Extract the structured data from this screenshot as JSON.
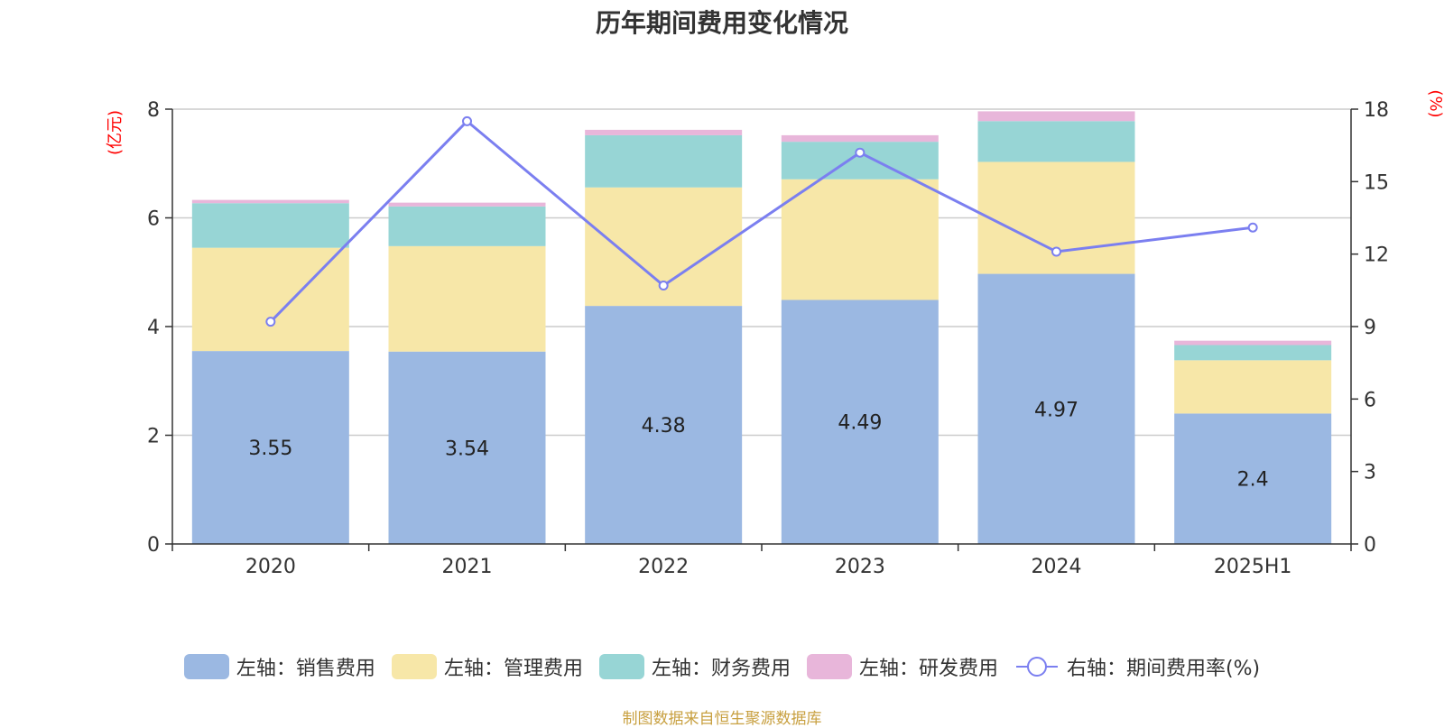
{
  "chart_data": {
    "type": "bar",
    "title": "历年期间费用变化情况",
    "categories": [
      "2020",
      "2021",
      "2022",
      "2023",
      "2024",
      "2025H1"
    ],
    "y_left_label": "(亿元)",
    "y_right_label": "(%)",
    "y_left_range": [
      0,
      8
    ],
    "y_left_ticks": [
      "0",
      "2",
      "4",
      "6",
      "8"
    ],
    "y_right_range": [
      0,
      18
    ],
    "y_right_ticks": [
      "0",
      "3",
      "6",
      "9",
      "12",
      "15",
      "18"
    ],
    "grid": true,
    "series": [
      {
        "name": "左轴：销售费用",
        "type": "bar",
        "stack": true,
        "axis": "left",
        "color": "#9bb8e2",
        "values": [
          3.55,
          3.54,
          4.38,
          4.49,
          4.97,
          2.4
        ],
        "labels": [
          "3.55",
          "3.54",
          "4.38",
          "4.49",
          "4.97",
          "2.4"
        ]
      },
      {
        "name": "左轴：管理费用",
        "type": "bar",
        "stack": true,
        "axis": "left",
        "color": "#f7e7a8",
        "values": [
          1.9,
          1.94,
          2.18,
          2.22,
          2.06,
          0.98
        ]
      },
      {
        "name": "左轴：财务费用",
        "type": "bar",
        "stack": true,
        "axis": "left",
        "color": "#97d5d5",
        "values": [
          0.82,
          0.73,
          0.96,
          0.69,
          0.75,
          0.28
        ]
      },
      {
        "name": "左轴：研发费用",
        "type": "bar",
        "stack": true,
        "axis": "left",
        "color": "#e8b6da",
        "values": [
          0.06,
          0.07,
          0.1,
          0.12,
          0.18,
          0.08
        ]
      },
      {
        "name": "右轴：期间费用率(%)",
        "type": "line",
        "axis": "right",
        "color": "#7b7ff0",
        "values": [
          9.2,
          17.5,
          10.7,
          16.2,
          12.1,
          13.1
        ]
      }
    ],
    "legend_position": "bottom"
  },
  "source_note": "制图数据来自恒生聚源数据库"
}
